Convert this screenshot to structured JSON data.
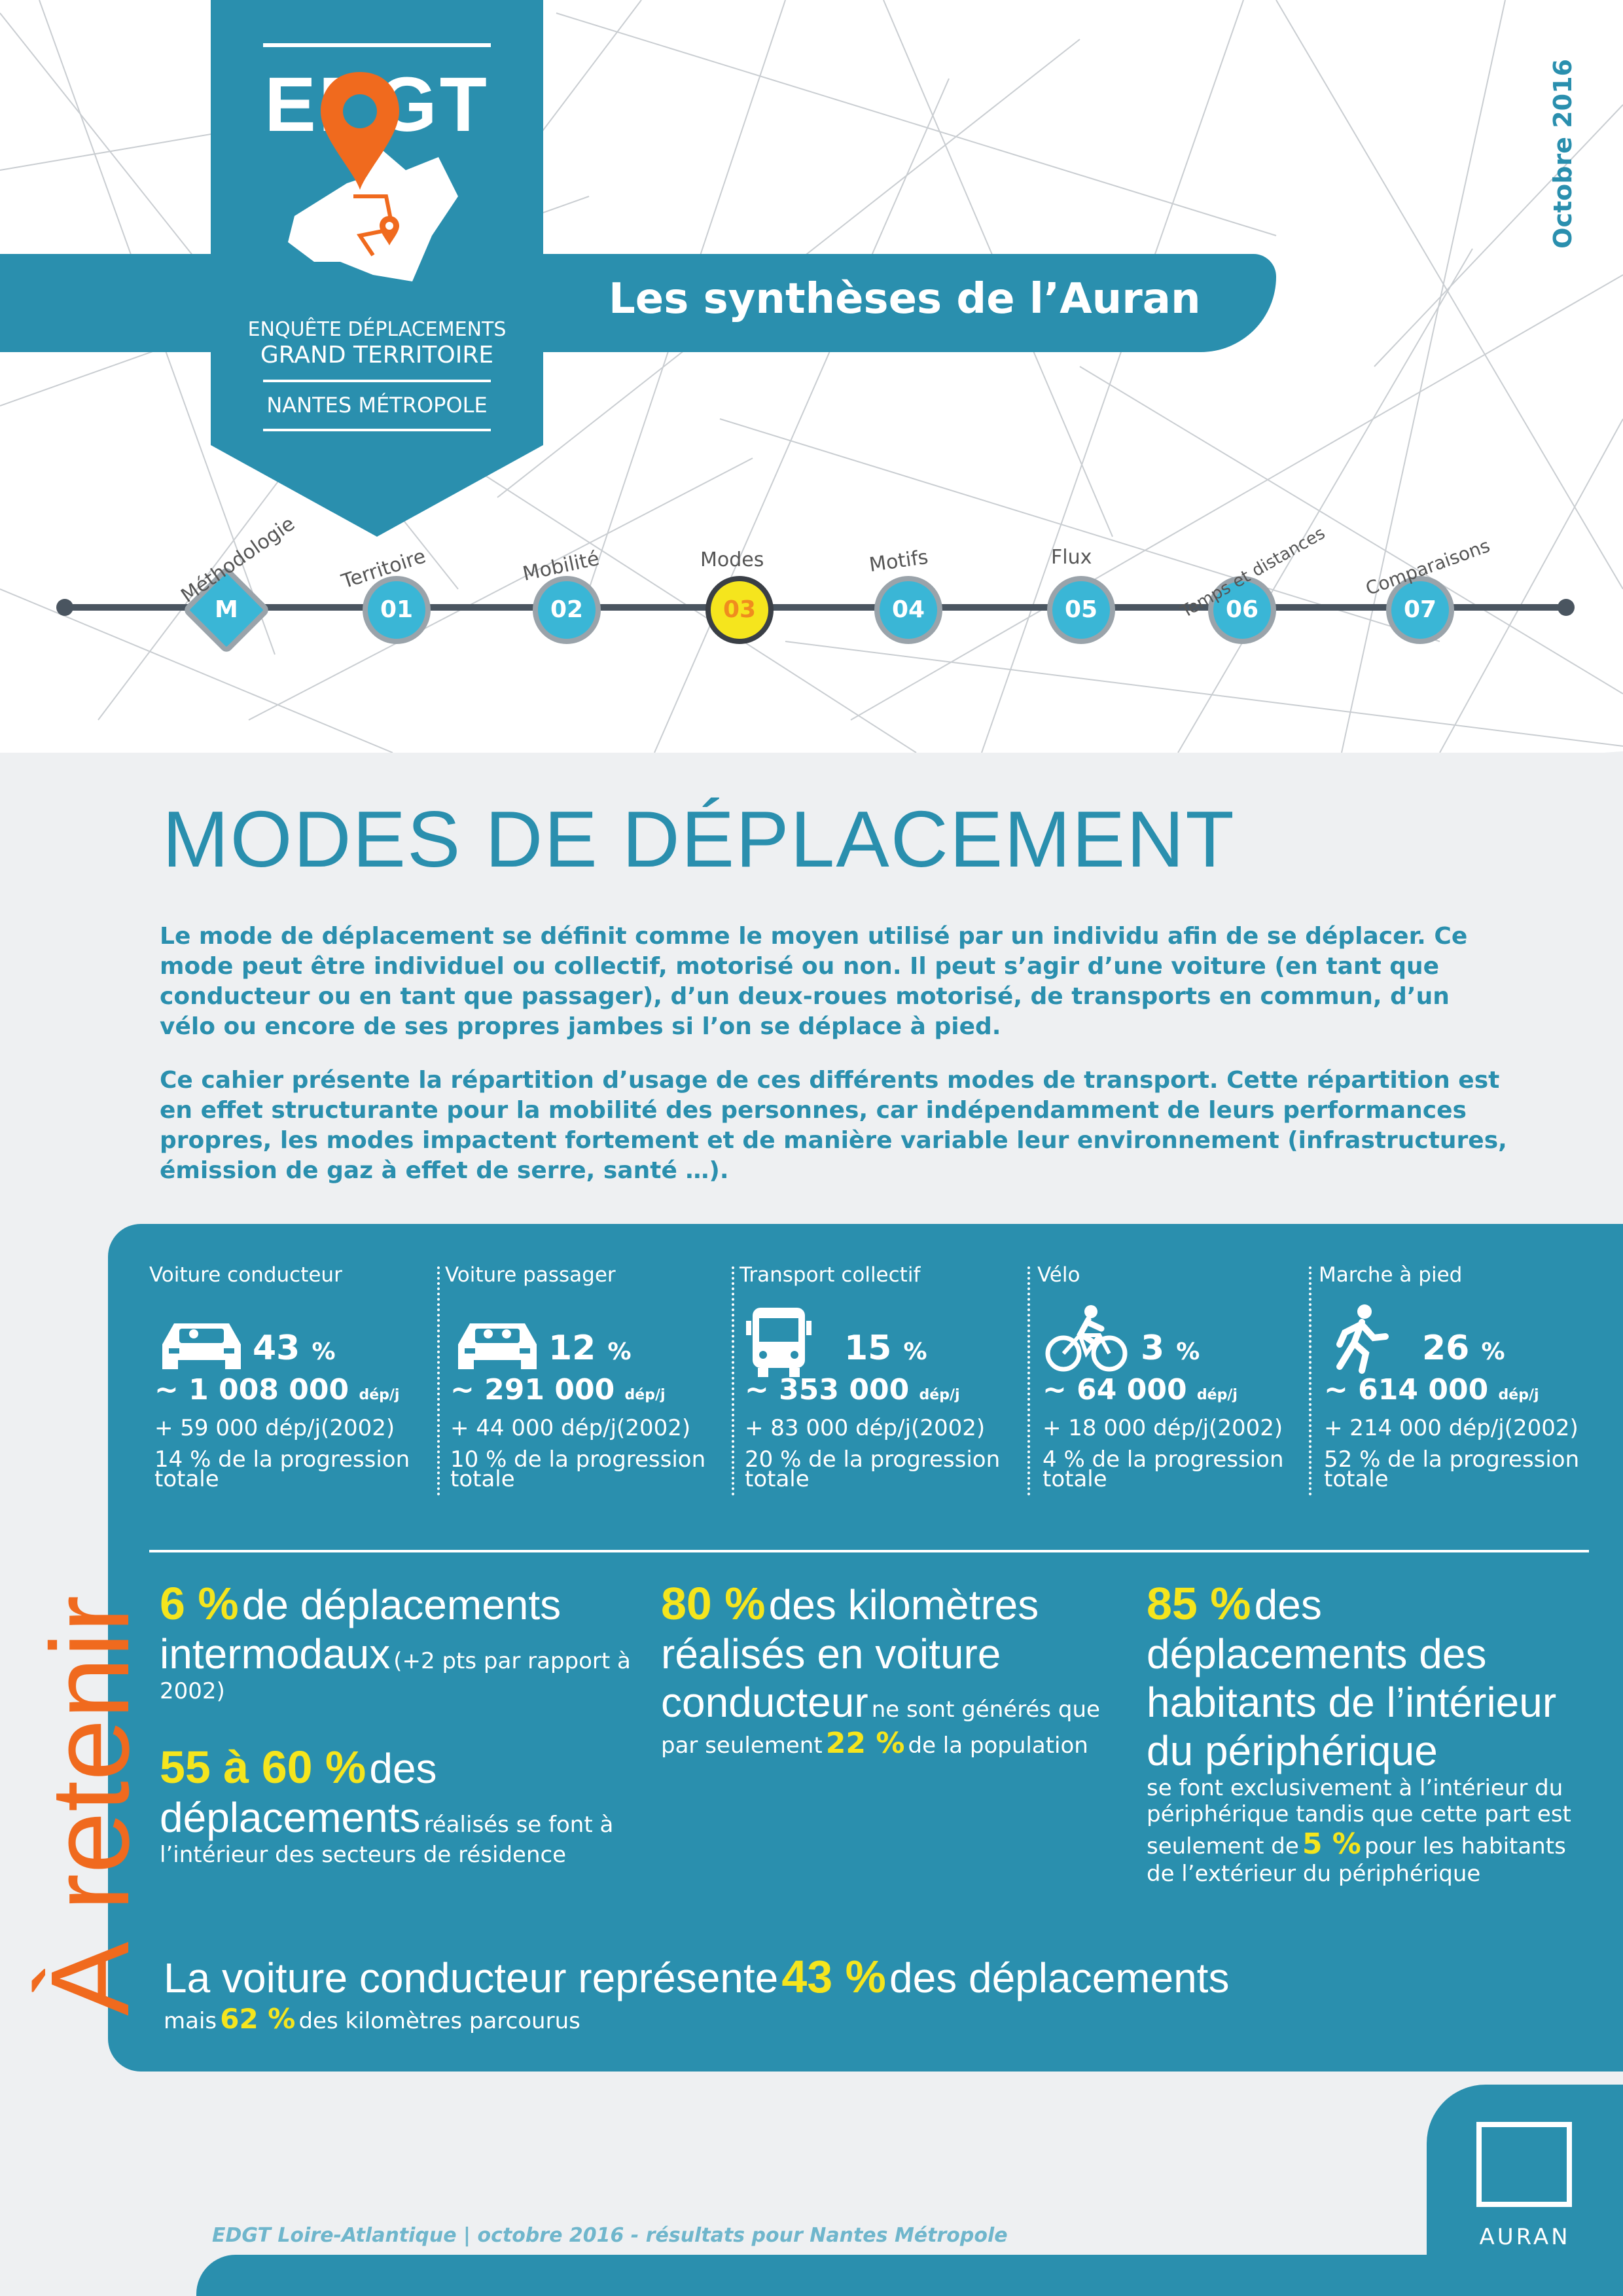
{
  "colors": {
    "primary": "#2a8fae",
    "accent_yellow": "#f5e51d",
    "accent_orange": "#f06a1e",
    "panel_grey": "#eef0f2"
  },
  "header": {
    "logo_text": "EDGT",
    "logo_subtitle_1": "ENQUÊTE DÉPLACEMENTS",
    "logo_subtitle_2": "GRAND TERRITOIRE",
    "logo_subtitle_3": "NANTES MÉTROPOLE",
    "series_title": "Les synthèses de l’Auran",
    "date": "Octobre 2016"
  },
  "timeline": [
    {
      "id": "M",
      "label": "Méthodologie",
      "active": false
    },
    {
      "id": "01",
      "label": "Territoire",
      "active": false
    },
    {
      "id": "02",
      "label": "Mobilité",
      "active": false
    },
    {
      "id": "03",
      "label": "Modes",
      "active": true
    },
    {
      "id": "04",
      "label": "Motifs",
      "active": false
    },
    {
      "id": "05",
      "label": "Flux",
      "active": false
    },
    {
      "id": "06",
      "label": "Temps et distances",
      "active": false
    },
    {
      "id": "07",
      "label": "Comparaisons",
      "active": false
    }
  ],
  "main": {
    "title": "MODES DE DÉPLACEMENT",
    "intro_1": "Le mode de déplacement se définit comme le moyen utilisé par un individu afin de se déplacer. Ce mode peut être individuel ou collectif, motorisé ou non. Il peut s’agir d’une voiture (en tant que conducteur ou en tant que passager), d’un deux-roues motorisé, de transports en commun, d’un vélo ou encore de ses propres jambes si l’on se déplace à pied.",
    "intro_2": "Ce cahier présente la répartition d’usage de ces différents modes de transport. Cette répartition est en effet structurante pour la mobilité des personnes, car indépendamment de leurs performances propres, les modes impactent fortement et de manière variable leur environnement (infrastructures, émission de gaz à effet de serre, santé …)."
  },
  "retenir": {
    "side_title": "À retenir",
    "unit_pct": "%",
    "unit_day": "dép/j",
    "modes": [
      {
        "name": "Voiture conducteur",
        "icon": "car-driver-icon",
        "pct": "43",
        "trips": "~ 1 008 000",
        "increase": "+ 59 000 dép/j(2002)",
        "share": "14 % de la progression totale"
      },
      {
        "name": "Voiture passager",
        "icon": "car-passenger-icon",
        "pct": "12",
        "trips": "~ 291 000",
        "increase": "+ 44 000 dép/j(2002)",
        "share": "10 % de la progression totale"
      },
      {
        "name": "Transport collectif",
        "icon": "bus-icon",
        "pct": "15",
        "trips": "~ 353 000",
        "increase": "+ 83 000 dép/j(2002)",
        "share": "20 % de la progression totale"
      },
      {
        "name": "Vélo",
        "icon": "bicycle-icon",
        "pct": "3",
        "trips": "~ 64 000",
        "increase": "+ 18 000 dép/j(2002)",
        "share": "4 % de la progression totale"
      },
      {
        "name": "Marche à pied",
        "icon": "walking-icon",
        "pct": "26",
        "trips": "~ 614 000",
        "increase": "+ 214 000 dép/j(2002)",
        "share": "52 % de la progression totale"
      }
    ],
    "facts": {
      "f1_value": "6 %",
      "f1_text_a": "de déplacements",
      "f1_text_b": "intermodaux",
      "f1_note": "(+2 pts par rapport à 2002)",
      "f2_value": "55 à 60 %",
      "f2_text_a": "des",
      "f2_text_b": "déplacements",
      "f2_note": "réalisés se font à l’intérieur des secteurs de résidence",
      "f3_value": "80 %",
      "f3_text_a": "des kilomètres réalisés en voiture",
      "f3_text_b": "conducteur",
      "f3_note_a": "ne sont générés que par seulement",
      "f3_note_value": "22 %",
      "f3_note_b": "de la population",
      "f4_value": "85 %",
      "f4_text": "des déplacements des habitants de l’intérieur du périphérique",
      "f4_note_a": "se font exclusivement à l’intérieur du périphérique tandis que cette part est seulement de",
      "f4_note_value": "5 %",
      "f4_note_b": "pour les habitants de l’extérieur du périphérique",
      "f5_text_a": "La voiture conducteur représente",
      "f5_value": "43 %",
      "f5_text_b": "des déplacements",
      "f5_note_a": "mais",
      "f5_note_value": "62 %",
      "f5_note_b": "des kilomètres parcourus"
    }
  },
  "footer": {
    "source": "EDGT Loire-Atlantique | octobre 2016 - résultats pour Nantes Métropole",
    "brand": "AURAN"
  }
}
